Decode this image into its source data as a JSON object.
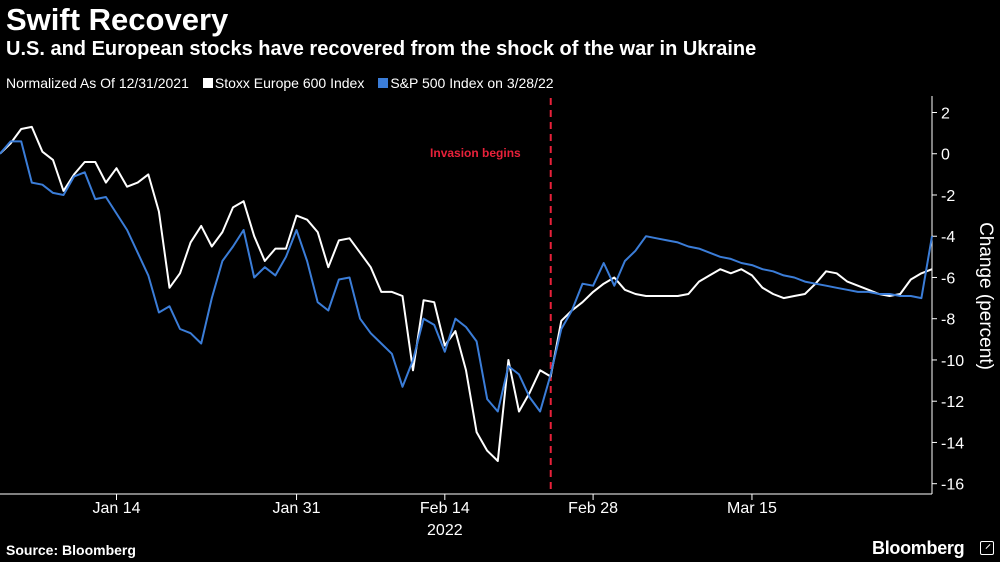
{
  "title": "Swift Recovery",
  "subtitle": "U.S. and European stocks have recovered from the shock of the war in Ukraine",
  "legend": {
    "prefix": "Normalized As Of 12/31/2021",
    "items": [
      {
        "label": "Stoxx Europe 600 Index",
        "color": "#ffffff"
      },
      {
        "label": "S&P 500 Index on 3/28/22",
        "color": "#3b7dd8"
      }
    ]
  },
  "footer": {
    "source": "Source: Bloomberg",
    "brand": "Bloomberg"
  },
  "chart_data": {
    "type": "line",
    "title": "Swift Recovery",
    "xlabel": "",
    "ylabel": "Change (percent)",
    "year_label": "2022",
    "ylim": [
      -16.5,
      2.8
    ],
    "yticks": [
      2,
      0,
      -2,
      -4,
      -6,
      -8,
      -10,
      -12,
      -14,
      -16
    ],
    "ytick_labels": [
      "2",
      "0",
      "-2",
      "-4",
      "-6",
      "-8",
      "-10",
      "-12",
      "-14",
      "-16"
    ],
    "x_range": [
      3,
      91
    ],
    "x_unit": "days since 12/31/2021",
    "xticks": [
      {
        "x": 14,
        "label": "Jan 14"
      },
      {
        "x": 31,
        "label": "Jan 31"
      },
      {
        "x": 45,
        "label": "Feb 14"
      },
      {
        "x": 59,
        "label": "Feb 28"
      },
      {
        "x": 74,
        "label": "Mar 15"
      }
    ],
    "annotation": {
      "x": 55,
      "label": "Invasion begins",
      "color": "#e8213a"
    },
    "series": [
      {
        "name": "Stoxx Europe 600 Index",
        "color": "#ffffff",
        "x": [
          3,
          4,
          5,
          6,
          7,
          8,
          9,
          10,
          11,
          12,
          13,
          14,
          15,
          16,
          17,
          18,
          19,
          20,
          21,
          22,
          23,
          24,
          25,
          26,
          27,
          28,
          29,
          30,
          31,
          32,
          33,
          34,
          35,
          36,
          37,
          38,
          39,
          40,
          41,
          42,
          43,
          44,
          45,
          46,
          47,
          48,
          49,
          50,
          51,
          52,
          53,
          54,
          55,
          56,
          57,
          58,
          59,
          60,
          61,
          62,
          63,
          64,
          65,
          66,
          67,
          68,
          69,
          70,
          71,
          72,
          73,
          74,
          75,
          76,
          77,
          78,
          79,
          80,
          81,
          82,
          83,
          84,
          85,
          86,
          87,
          88,
          89,
          90,
          91
        ],
        "values": [
          0.0,
          0.5,
          1.2,
          1.3,
          0.1,
          -0.3,
          -1.8,
          -1.0,
          -0.4,
          -0.4,
          -1.4,
          -0.7,
          -1.6,
          -1.4,
          -1.0,
          -2.8,
          -6.5,
          -5.8,
          -4.3,
          -3.5,
          -4.5,
          -3.8,
          -2.6,
          -2.3,
          -4.0,
          -5.2,
          -4.6,
          -4.6,
          -3.0,
          -3.2,
          -3.8,
          -5.5,
          -4.2,
          -4.1,
          -4.8,
          -5.5,
          -6.7,
          -6.7,
          -6.9,
          -10.5,
          -7.1,
          -7.2,
          -9.3,
          -8.6,
          -10.5,
          -13.5,
          -14.4,
          -14.9,
          -10.0,
          -12.5,
          -11.6,
          -10.5,
          -10.8,
          -8.1,
          -7.6,
          -7.2,
          -6.7,
          -6.3,
          -6.0,
          -6.6,
          -6.8,
          -6.9,
          -6.9,
          -6.9,
          -6.9,
          -6.8,
          -6.2,
          -5.9,
          -5.6,
          -5.8,
          -5.6,
          -5.9,
          -6.5,
          -6.8,
          -7.0,
          -6.9,
          -6.8,
          -6.3,
          -5.7,
          -5.8,
          -6.2,
          -6.4,
          -6.6,
          -6.8,
          -6.9,
          -6.8,
          -6.1,
          -5.8,
          -5.6
        ]
      },
      {
        "name": "S&P 500 Index on 3/28/22",
        "color": "#3b7dd8",
        "x": [
          3,
          4,
          5,
          6,
          7,
          8,
          9,
          10,
          11,
          12,
          13,
          14,
          15,
          16,
          17,
          18,
          19,
          20,
          21,
          22,
          23,
          24,
          25,
          26,
          27,
          28,
          29,
          30,
          31,
          32,
          33,
          34,
          35,
          36,
          37,
          38,
          39,
          40,
          41,
          42,
          43,
          44,
          45,
          46,
          47,
          48,
          49,
          50,
          51,
          52,
          53,
          54,
          55,
          56,
          57,
          58,
          59,
          60,
          61,
          62,
          63,
          64,
          65,
          66,
          67,
          68,
          69,
          70,
          71,
          72,
          73,
          74,
          75,
          76,
          77,
          78,
          79,
          80,
          81,
          82,
          83,
          84,
          85,
          86,
          87,
          88,
          89,
          90,
          91
        ],
        "values": [
          0.0,
          0.6,
          0.6,
          -1.4,
          -1.5,
          -1.9,
          -2.0,
          -1.1,
          -0.9,
          -2.2,
          -2.1,
          -2.9,
          -3.7,
          -4.8,
          -5.9,
          -7.7,
          -7.4,
          -8.5,
          -8.7,
          -9.2,
          -7.0,
          -5.2,
          -4.5,
          -3.7,
          -6.0,
          -5.5,
          -5.9,
          -5.0,
          -3.7,
          -5.2,
          -7.2,
          -7.6,
          -6.1,
          -6.0,
          -8.0,
          -8.7,
          -9.2,
          -9.7,
          -11.3,
          -10.0,
          -8.0,
          -8.3,
          -9.6,
          -8.0,
          -8.4,
          -9.1,
          -11.9,
          -12.5,
          -10.3,
          -10.7,
          -11.8,
          -12.5,
          -10.7,
          -8.5,
          -7.6,
          -6.3,
          -6.4,
          -5.3,
          -6.4,
          -5.2,
          -4.7,
          -4.0,
          -4.1,
          -4.2,
          -4.3,
          -4.5,
          -4.6,
          -4.8,
          -5.0,
          -5.1,
          -5.3,
          -5.4,
          -5.6,
          -5.7,
          -5.9,
          -6.0,
          -6.2,
          -6.3,
          -6.4,
          -6.5,
          -6.6,
          -6.7,
          -6.7,
          -6.8,
          -6.8,
          -6.9,
          -6.9,
          -7.0,
          -4.0
        ]
      }
    ]
  }
}
